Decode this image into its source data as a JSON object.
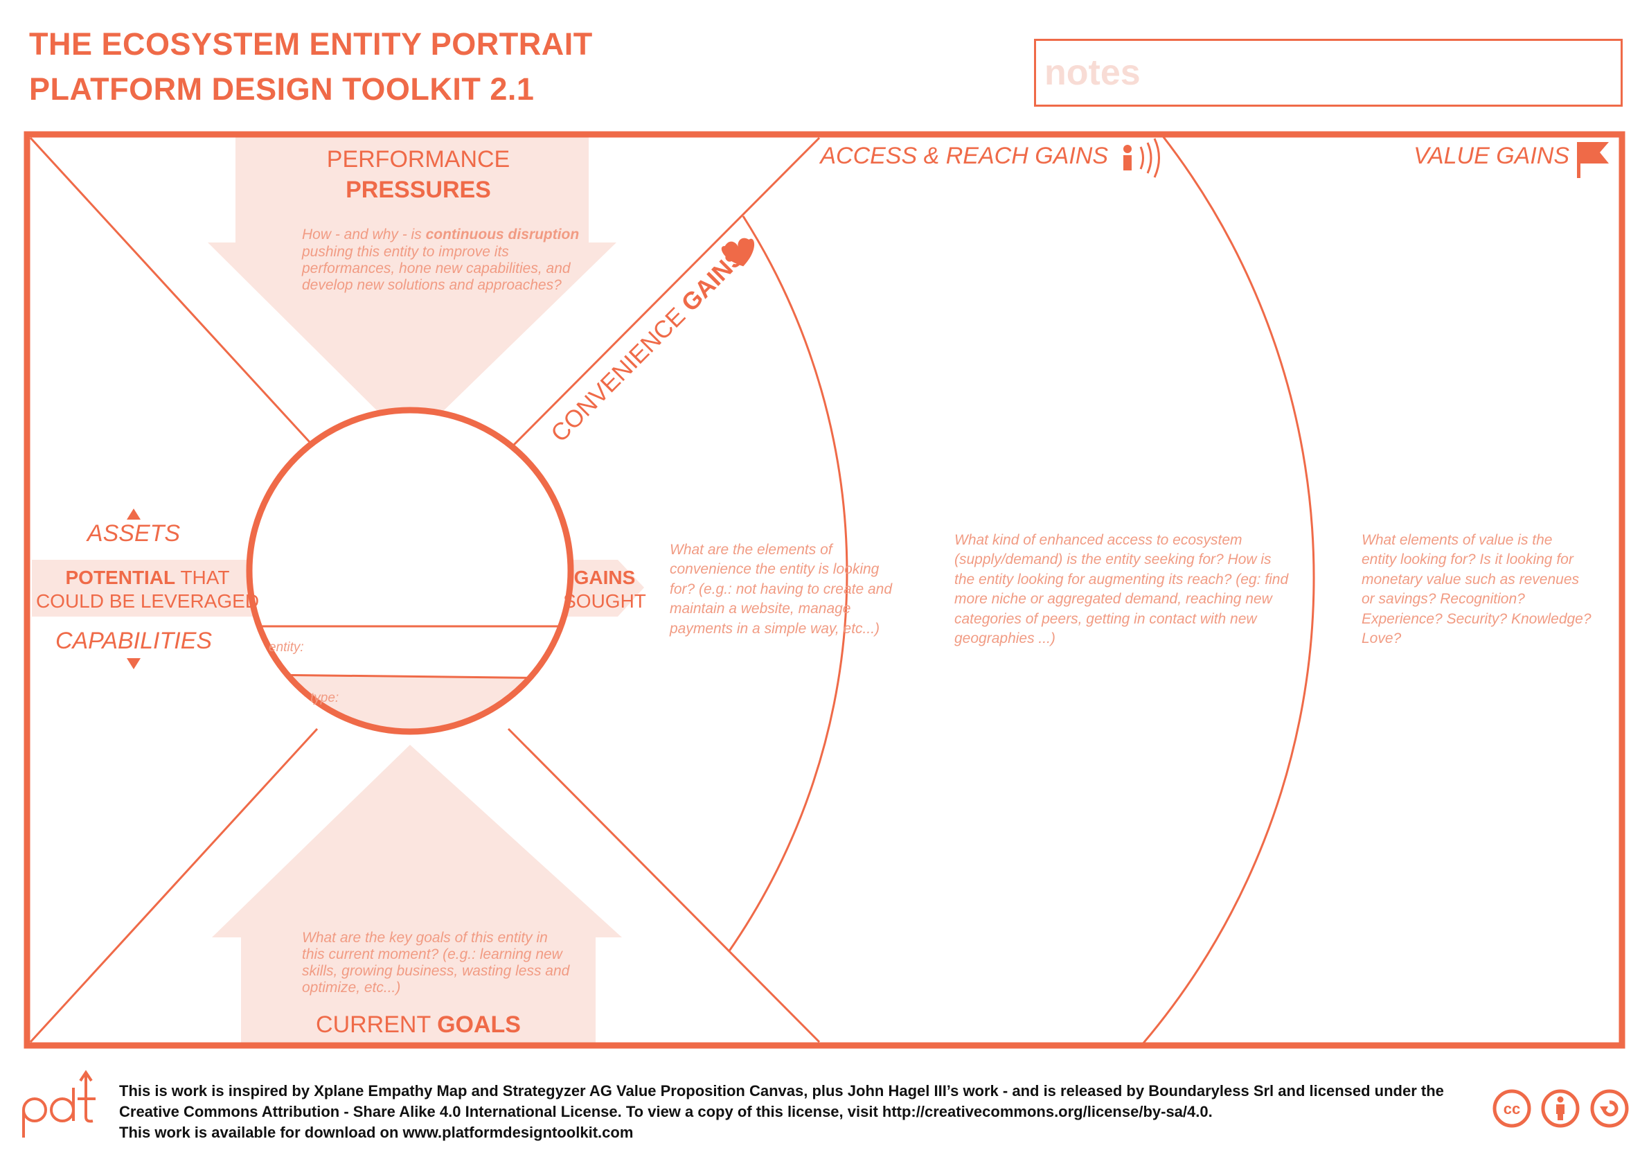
{
  "header": {
    "title_line1": "THE ECOSYSTEM ENTITY PORTRAIT",
    "title_line2": "PLATFORM DESIGN TOOLKIT 2.1",
    "notes_placeholder": "notes"
  },
  "canvas": {
    "performance": {
      "label_light": "PERFORMANCE",
      "label_bold": "PRESSURES",
      "question": [
        "How - and why - is ",
        "continuous disruption",
        "pushing this entity to improve its",
        "performances, hone new capabilities, and",
        "develop new solutions and approaches?"
      ]
    },
    "goals": {
      "label_light": "CURRENT ",
      "label_bold": "GOALS",
      "question": [
        "What are the key goals of this entity in",
        "this current moment? (e.g.: learning new",
        "skills, growing business, wasting less and",
        "optimize, etc...)"
      ]
    },
    "potential": {
      "assets": "ASSETS",
      "capabilities": "CAPABILITIES",
      "line1_bold": "POTENTIAL",
      "line1_light": " THAT",
      "line2": "COULD BE LEVERAGED"
    },
    "gains_sought": {
      "line1": "GAINS",
      "line2": "SOUGHT"
    },
    "entity_label": "entity:",
    "type_label": "type:",
    "convenience": {
      "label_light": "CONVENIENCE ",
      "label_bold": "GAINS",
      "question": [
        "What are the elements of",
        "convenience the entity is looking",
        "for? (e.g.: not having to create and",
        "maintain a website, manage",
        "payments in a simple way, etc...)"
      ]
    },
    "access": {
      "label": "ACCESS & REACH  GAINS",
      "question": [
        "What kind of enhanced access to ecosystem",
        "(supply/demand) is the entity seeking for? How is",
        "the entity looking for augmenting its reach? (eg: find",
        "more niche or aggregated demand, reaching new",
        "categories of peers, getting in contact with new",
        "geographies ...)"
      ]
    },
    "value": {
      "label": "VALUE GAINS",
      "question": [
        "What elements of value is the",
        "entity looking for? Is it looking for",
        "monetary value such as revenues",
        "or savings? Recognition?",
        "Experience? Security? Knowledge?",
        "Love?"
      ]
    }
  },
  "footer": {
    "logo_text": "pdt",
    "line1": "This is work is inspired by Xplane Empathy Map and Strategyzer AG Value Proposition Canvas, plus John Hagel III’s work - and is released by Boundaryless Srl and licensed under the",
    "line2": "Creative Commons Attribution - Share Alike 4.0 International License. To view a copy of this license, visit http://creativecommons.org/license/by-sa/4.0.",
    "line3": "This work is available for download on www.platformdesigntoolkit.com",
    "cc_label": "cc"
  },
  "colors": {
    "accent": "#ef6a48",
    "light_fill": "#fbe5df",
    "question_text": "#f19b83",
    "notes_placeholder": "#f8dcd5",
    "footer_text": "#111111"
  },
  "icons": [
    "heart-icon",
    "person-signal-icon",
    "flag-icon",
    "triangle-up-icon",
    "triangle-down-icon",
    "cc-icon",
    "attribution-icon",
    "share-alike-icon"
  ]
}
